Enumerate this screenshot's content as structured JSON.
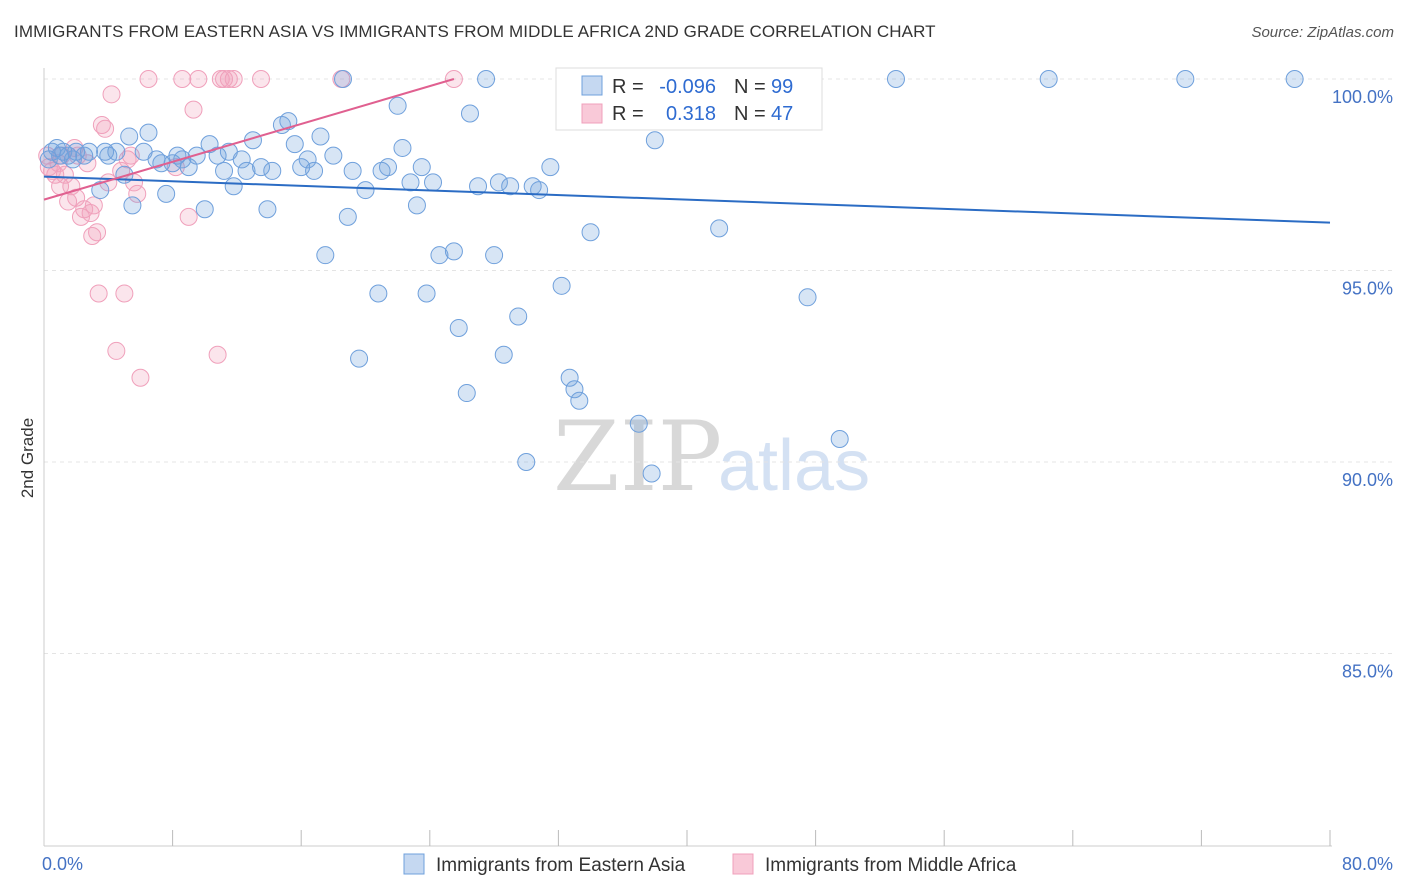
{
  "title": "IMMIGRANTS FROM EASTERN ASIA VS IMMIGRANTS FROM MIDDLE AFRICA 2ND GRADE CORRELATION CHART",
  "source": "Source: ZipAtlas.com",
  "watermark": {
    "zip": "ZIP",
    "atlas": "atlas"
  },
  "colors": {
    "blue": "#6fa0dc",
    "blue_line": "#2b6cc4",
    "pink": "#f0a0bb",
    "pink_line": "#e06090",
    "value_text": "#2e6bd1"
  },
  "legend_box": {
    "rows": [
      {
        "r_label": "R =",
        "r_value": "-0.096",
        "n_label": "N =",
        "n_value": "99"
      },
      {
        "r_label": "R =",
        "r_value": "0.318",
        "n_label": "N =",
        "n_value": "47"
      }
    ]
  },
  "bottom_legend": {
    "series1": "Immigrants from Eastern Asia",
    "series2": "Immigrants from Middle Africa"
  },
  "chart_data": {
    "type": "scatter",
    "title": "IMMIGRANTS FROM EASTERN ASIA VS IMMIGRANTS FROM MIDDLE AFRICA 2ND GRADE CORRELATION CHART",
    "xlabel": "",
    "ylabel": "2nd Grade",
    "xlim": [
      0,
      80
    ],
    "ylim": [
      80.5,
      101
    ],
    "x_tick_labels": [
      "0.0%",
      "80.0%"
    ],
    "y_ticks": [
      100,
      95,
      90,
      85
    ],
    "y_tick_labels": [
      "100.0%",
      "95.0%",
      "90.0%",
      "85.0%"
    ],
    "series": [
      {
        "name": "Immigrants from Eastern Asia",
        "color": "#6fa0dc",
        "R": -0.096,
        "N": 99,
        "trend": {
          "x": [
            0,
            80
          ],
          "y": [
            97.45,
            96.25
          ]
        },
        "points": [
          [
            0.5,
            98.1
          ],
          [
            0.8,
            98.2
          ],
          [
            1.0,
            98.0
          ],
          [
            1.2,
            98.1
          ],
          [
            1.5,
            98.0
          ],
          [
            2.0,
            98.1
          ],
          [
            2.5,
            98.0
          ],
          [
            2.8,
            98.1
          ],
          [
            3.5,
            97.1
          ],
          [
            3.8,
            98.1
          ],
          [
            4.5,
            98.1
          ],
          [
            5.0,
            97.5
          ],
          [
            5.3,
            98.5
          ],
          [
            5.5,
            96.7
          ],
          [
            6.2,
            98.1
          ],
          [
            6.5,
            98.6
          ],
          [
            7.0,
            97.9
          ],
          [
            7.3,
            97.8
          ],
          [
            7.6,
            97.0
          ],
          [
            8.0,
            97.8
          ],
          [
            8.3,
            98.0
          ],
          [
            8.6,
            97.9
          ],
          [
            9.0,
            97.7
          ],
          [
            9.5,
            98.0
          ],
          [
            10.0,
            96.6
          ],
          [
            10.3,
            98.3
          ],
          [
            10.8,
            98.0
          ],
          [
            11.2,
            97.6
          ],
          [
            11.5,
            98.1
          ],
          [
            11.8,
            97.2
          ],
          [
            12.3,
            97.9
          ],
          [
            12.6,
            97.6
          ],
          [
            13.0,
            98.4
          ],
          [
            13.5,
            97.7
          ],
          [
            13.9,
            96.6
          ],
          [
            14.2,
            97.6
          ],
          [
            14.8,
            98.8
          ],
          [
            15.2,
            98.9
          ],
          [
            15.6,
            98.3
          ],
          [
            16.0,
            97.7
          ],
          [
            16.4,
            97.9
          ],
          [
            16.8,
            97.6
          ],
          [
            17.2,
            98.5
          ],
          [
            17.5,
            95.4
          ],
          [
            18.0,
            98.0
          ],
          [
            18.6,
            100.0
          ],
          [
            18.9,
            96.4
          ],
          [
            19.2,
            97.6
          ],
          [
            19.6,
            92.7
          ],
          [
            20.0,
            97.1
          ],
          [
            20.8,
            94.4
          ],
          [
            21.0,
            97.6
          ],
          [
            21.4,
            97.7
          ],
          [
            22.0,
            99.3
          ],
          [
            22.3,
            98.2
          ],
          [
            22.8,
            97.3
          ],
          [
            23.2,
            96.7
          ],
          [
            23.5,
            97.7
          ],
          [
            23.8,
            94.4
          ],
          [
            24.2,
            97.3
          ],
          [
            24.6,
            95.4
          ],
          [
            25.5,
            95.5
          ],
          [
            25.8,
            93.5
          ],
          [
            26.3,
            91.8
          ],
          [
            26.5,
            99.1
          ],
          [
            27.0,
            97.2
          ],
          [
            27.5,
            100.0
          ],
          [
            28.0,
            95.4
          ],
          [
            28.3,
            97.3
          ],
          [
            28.6,
            92.8
          ],
          [
            29.0,
            97.2
          ],
          [
            29.5,
            93.8
          ],
          [
            30.0,
            90.0
          ],
          [
            30.4,
            97.2
          ],
          [
            30.8,
            97.1
          ],
          [
            31.5,
            97.7
          ],
          [
            32.2,
            94.6
          ],
          [
            32.7,
            92.2
          ],
          [
            33.0,
            91.9
          ],
          [
            33.3,
            91.6
          ],
          [
            34.0,
            96.0
          ],
          [
            35.0,
            100.0
          ],
          [
            35.5,
            100.0
          ],
          [
            37.0,
            91.0
          ],
          [
            37.5,
            100.0
          ],
          [
            37.8,
            89.7
          ],
          [
            38.0,
            98.4
          ],
          [
            39.0,
            100.0
          ],
          [
            42.0,
            96.1
          ],
          [
            43.0,
            100.0
          ],
          [
            47.5,
            94.3
          ],
          [
            49.5,
            90.6
          ],
          [
            53.0,
            100.0
          ],
          [
            62.5,
            100.0
          ],
          [
            71.0,
            100.0
          ],
          [
            77.8,
            100.0
          ],
          [
            0.3,
            97.9
          ],
          [
            1.8,
            97.9
          ],
          [
            4.0,
            98.0
          ]
        ]
      },
      {
        "name": "Immigrants from Middle Africa",
        "color": "#f0a0bb",
        "R": 0.318,
        "N": 47,
        "trend": {
          "x": [
            0,
            25.5
          ],
          "y": [
            96.85,
            100.0
          ]
        },
        "points": [
          [
            0.3,
            97.7
          ],
          [
            0.5,
            97.6
          ],
          [
            0.7,
            97.5
          ],
          [
            0.9,
            97.8
          ],
          [
            1.1,
            98.0
          ],
          [
            1.3,
            97.5
          ],
          [
            1.5,
            96.8
          ],
          [
            1.7,
            97.2
          ],
          [
            1.9,
            98.2
          ],
          [
            2.1,
            98.0
          ],
          [
            2.3,
            96.4
          ],
          [
            2.5,
            96.6
          ],
          [
            2.7,
            97.8
          ],
          [
            2.9,
            96.5
          ],
          [
            3.1,
            96.7
          ],
          [
            3.3,
            96.0
          ],
          [
            3.4,
            94.4
          ],
          [
            3.6,
            98.8
          ],
          [
            3.8,
            98.7
          ],
          [
            4.0,
            97.3
          ],
          [
            4.2,
            99.6
          ],
          [
            4.5,
            92.9
          ],
          [
            4.8,
            97.6
          ],
          [
            5.0,
            94.4
          ],
          [
            5.2,
            97.9
          ],
          [
            5.4,
            98.0
          ],
          [
            5.6,
            97.3
          ],
          [
            5.8,
            97.0
          ],
          [
            6.0,
            92.2
          ],
          [
            6.5,
            100.0
          ],
          [
            8.2,
            97.7
          ],
          [
            8.6,
            100.0
          ],
          [
            9.0,
            96.4
          ],
          [
            9.3,
            99.2
          ],
          [
            9.6,
            100.0
          ],
          [
            10.8,
            92.8
          ],
          [
            11.0,
            100.0
          ],
          [
            11.2,
            100.0
          ],
          [
            11.5,
            100.0
          ],
          [
            11.8,
            100.0
          ],
          [
            13.5,
            100.0
          ],
          [
            18.5,
            100.0
          ],
          [
            25.5,
            100.0
          ],
          [
            0.2,
            98.0
          ],
          [
            1.0,
            97.2
          ],
          [
            2.0,
            96.9
          ],
          [
            3.0,
            95.9
          ]
        ]
      }
    ]
  }
}
